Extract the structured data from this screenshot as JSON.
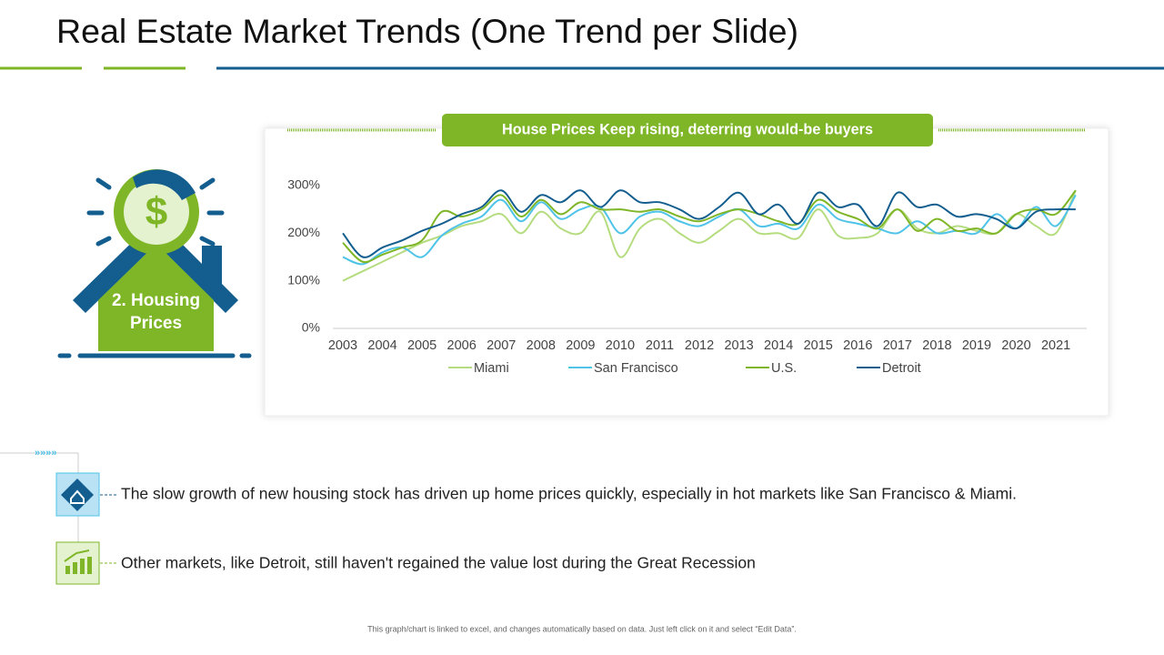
{
  "header": {
    "title": "Real Estate Market Trends (One Trend per Slide)"
  },
  "icon_label": "2. Housing Prices",
  "chart_data": {
    "type": "line",
    "title": "House Prices Keep rising, deterring would-be buyers",
    "categories": [
      "2003",
      null,
      "2004",
      null,
      "2005",
      null,
      "2006",
      null,
      "2007",
      null,
      "2008",
      null,
      "2009",
      null,
      "2010",
      null,
      "2011",
      null,
      "2012",
      null,
      "2013",
      null,
      "2014",
      null,
      "2015",
      null,
      "2016",
      null,
      "2017",
      null,
      "2018",
      null,
      "2019",
      null,
      "2020",
      null,
      "2021",
      null
    ],
    "series": [
      {
        "name": "Miami",
        "color": "#b5dc7f",
        "values": [
          100,
          120,
          140,
          160,
          180,
          195,
          215,
          225,
          240,
          200,
          245,
          210,
          200,
          245,
          150,
          210,
          230,
          200,
          180,
          205,
          230,
          200,
          200,
          190,
          250,
          195,
          190,
          200,
          250,
          210,
          200,
          215,
          205,
          200,
          240,
          215,
          200,
          290
        ]
      },
      {
        "name": "San Francisco",
        "color": "#4fc3e8",
        "values": [
          150,
          135,
          160,
          170,
          150,
          195,
          220,
          235,
          270,
          225,
          265,
          230,
          250,
          255,
          200,
          235,
          245,
          225,
          215,
          235,
          250,
          215,
          220,
          210,
          260,
          230,
          220,
          210,
          200,
          225,
          200,
          205,
          200,
          240,
          210,
          255,
          215,
          280
        ]
      },
      {
        "name": "U.S.",
        "color": "#7fb627",
        "values": [
          180,
          140,
          155,
          170,
          185,
          245,
          235,
          250,
          280,
          235,
          270,
          240,
          265,
          250,
          250,
          245,
          250,
          235,
          225,
          240,
          250,
          240,
          225,
          220,
          270,
          245,
          230,
          210,
          250,
          205,
          230,
          205,
          210,
          200,
          240,
          250,
          240,
          290
        ]
      },
      {
        "name": "Detroit",
        "color": "#135e8f",
        "values": [
          200,
          150,
          170,
          185,
          205,
          220,
          240,
          255,
          290,
          245,
          280,
          265,
          290,
          255,
          290,
          265,
          265,
          250,
          230,
          255,
          285,
          240,
          260,
          220,
          285,
          255,
          260,
          215,
          285,
          255,
          260,
          235,
          240,
          230,
          210,
          245,
          250,
          250
        ]
      }
    ],
    "ylim": [
      0,
      300
    ],
    "yticks": [
      {
        "value": 0,
        "label": "0%"
      },
      {
        "value": 100,
        "label": "100%"
      },
      {
        "value": 200,
        "label": "200%"
      },
      {
        "value": 300,
        "label": "300%"
      }
    ],
    "legend": "bottom"
  },
  "bullets": [
    "The slow growth of new housing stock has driven up home prices quickly, especially in hot markets like San Francisco & Miami.",
    "Other markets, like Detroit, still haven't regained the value lost during the Great Recession"
  ],
  "footer": "This graph/chart is linked to excel, and changes automatically based on data. Just left click on it and select “Edit Data”."
}
